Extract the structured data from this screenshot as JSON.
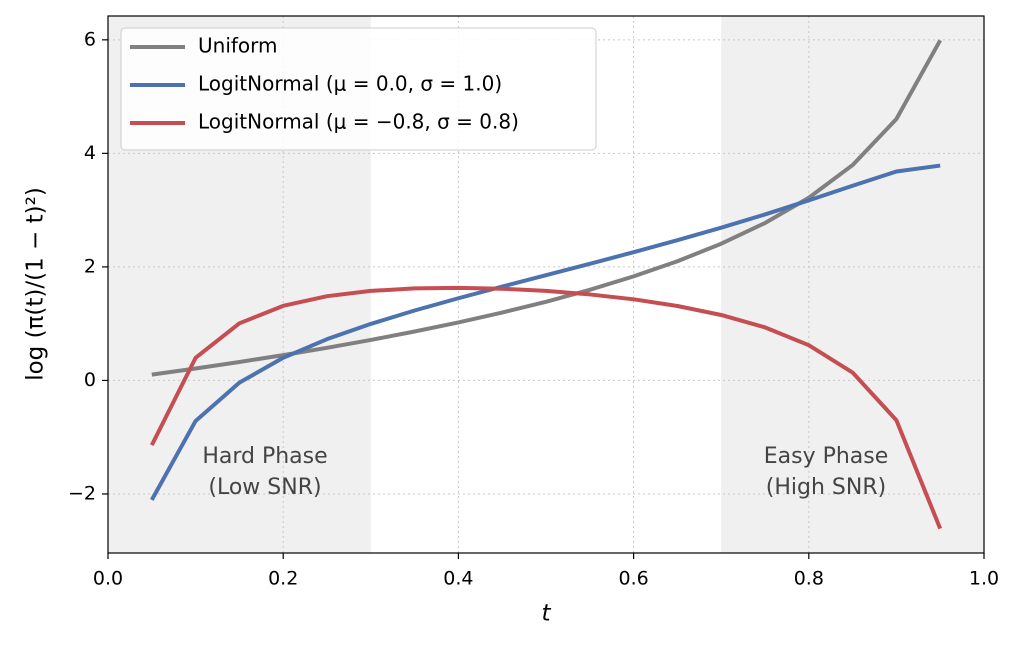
{
  "chart_data": {
    "type": "line",
    "x_label": "t",
    "y_label": "log (π(t)/(1 − t)²)",
    "x": [
      0.05,
      0.1,
      0.15,
      0.2,
      0.25,
      0.3,
      0.35,
      0.4,
      0.45,
      0.5,
      0.55,
      0.6,
      0.65,
      0.7,
      0.75,
      0.8,
      0.85,
      0.9,
      0.95
    ],
    "series": [
      {
        "name": "Uniform",
        "color": "#808080",
        "values": [
          0.103,
          0.211,
          0.325,
          0.446,
          0.575,
          0.713,
          0.862,
          1.022,
          1.196,
          1.386,
          1.597,
          1.833,
          2.1,
          2.408,
          2.773,
          3.219,
          3.794,
          4.605,
          5.992
        ]
      },
      {
        "name": "LogitNormal (μ = 0.0, σ = 1.0)",
        "color": "#4c72b0",
        "values": [
          -2.104,
          -0.714,
          -0.039,
          0.399,
          0.727,
          0.996,
          1.232,
          1.448,
          1.653,
          1.854,
          2.054,
          2.259,
          2.47,
          2.691,
          2.924,
          3.172,
          3.43,
          3.681,
          3.785
        ]
      },
      {
        "name": "LogitNormal (μ = −0.8, σ = 0.8)",
        "color": "#c44e52",
        "values": [
          -1.139,
          0.398,
          1.006,
          1.314,
          1.484,
          1.577,
          1.621,
          1.631,
          1.616,
          1.577,
          1.515,
          1.429,
          1.311,
          1.153,
          0.935,
          0.621,
          0.139,
          -0.701,
          -2.611
        ]
      }
    ],
    "shaded_regions": [
      [
        0,
        0.3
      ],
      [
        0.7,
        1.0
      ]
    ],
    "annotations": [
      [
        "Hard Phase",
        "(Low SNR)"
      ],
      [
        "Easy Phase",
        "(High SNR)"
      ]
    ],
    "xlim": [
      0,
      1.0
    ],
    "ylim": [
      -3.04,
      6.42
    ],
    "xticks": [
      {
        "value": 0,
        "label": "0.0"
      },
      0.2,
      0.4,
      0.6,
      0.8,
      {
        "value": 1.0,
        "label": "1.0"
      }
    ],
    "yticks": [
      {
        "value": -2,
        "label": "−2"
      },
      0,
      2,
      4,
      6
    ],
    "grid": true,
    "legend": "upper left"
  }
}
